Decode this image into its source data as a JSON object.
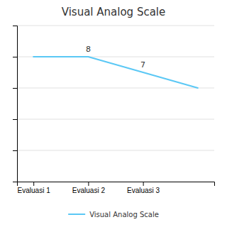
{
  "chart_data": {
    "type": "line",
    "title": "Visual Analog Scale",
    "x": [
      0,
      1,
      2,
      3
    ],
    "xlim": [
      -0.3,
      3.3
    ],
    "xticks": [
      {
        "value": 0,
        "label": "Evaluasi 1"
      },
      {
        "value": 1,
        "label": "Evaluasi 2"
      },
      {
        "value": 2,
        "label": "Evaluasi 3"
      }
    ],
    "ylim": [
      0,
      10
    ],
    "yticks": [
      2,
      4,
      6,
      8,
      10
    ],
    "grid": true,
    "tick_labels": "x",
    "legend": "bottom",
    "series": [
      {
        "name": "Visual Analog Scale",
        "color": "#5BC8F5",
        "values": [
          8,
          8,
          7,
          6
        ],
        "value_labels": [
          null,
          "8",
          "7",
          null
        ]
      }
    ]
  }
}
